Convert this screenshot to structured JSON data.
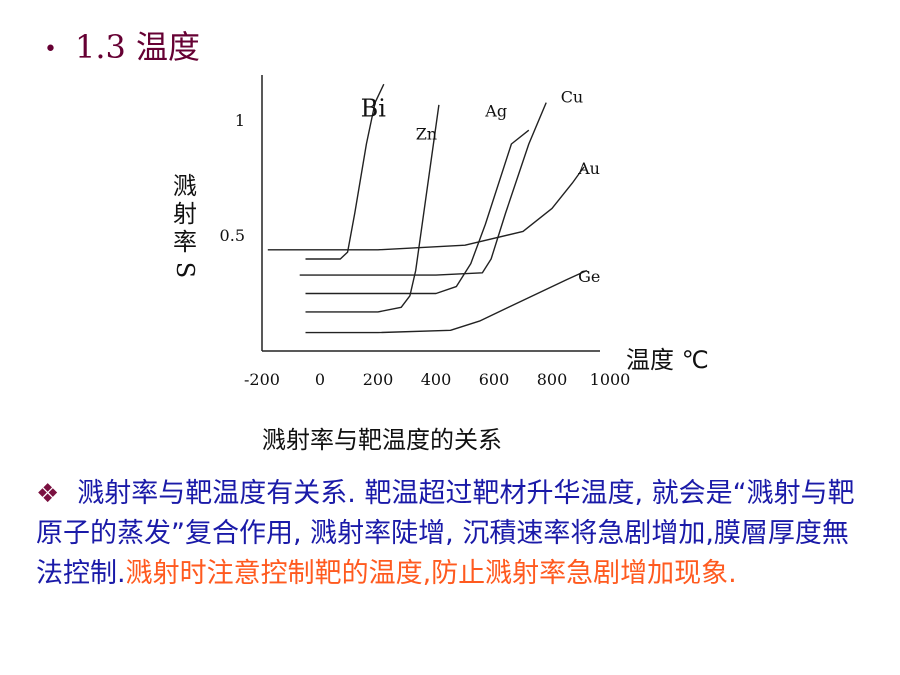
{
  "slide": {
    "title": "1.3 温度",
    "caption": "溅射率与靶温度的关系",
    "paragraph": {
      "marker": "❖",
      "blue_text": "溅射率与靶温度有关系. 靶温超过靶材升华温度, 就会是“溅射与靶原子的蒸发”复合作用, 溅射率陡增, 沉積速率将急剧增加,膜層厚度無法控制.",
      "orange_text": "溅射时注意控制靶的温度,防止溅射率急剧增加现象."
    }
  },
  "colors": {
    "title": "#660033",
    "blue_text": "#1a1aa8",
    "orange_text": "#ff5a1f",
    "curves": "#222222"
  },
  "chart_data": {
    "type": "line",
    "title": "",
    "xlabel": "温度 ℃",
    "ylabel_chars": [
      "溅",
      "射",
      "率"
    ],
    "ylabel_symbol": "S",
    "x_ticks": [
      "-200",
      "0",
      "200",
      "400",
      "600",
      "800",
      "1000"
    ],
    "x_tick_values": [
      -200,
      0,
      200,
      400,
      600,
      800,
      1000
    ],
    "y_ticks": [
      "0.5",
      "1"
    ],
    "y_tick_values": [
      0.5,
      1
    ],
    "xlim": [
      -200,
      1050
    ],
    "ylim": [
      0,
      1.08
    ],
    "grid": false,
    "series": [
      {
        "name": "Bi",
        "x": [
          -50,
          30,
          70,
          95,
          120,
          160,
          190,
          220
        ],
        "y": [
          0.4,
          0.4,
          0.4,
          0.43,
          0.6,
          0.9,
          1.08,
          1.16
        ]
      },
      {
        "name": "Zn",
        "x": [
          -50,
          100,
          200,
          280,
          310,
          330,
          380,
          410
        ],
        "y": [
          0.17,
          0.17,
          0.17,
          0.19,
          0.24,
          0.35,
          0.8,
          1.07
        ]
      },
      {
        "name": "Ag",
        "x": [
          -50,
          200,
          400,
          470,
          520,
          570,
          660,
          720
        ],
        "y": [
          0.25,
          0.25,
          0.25,
          0.28,
          0.38,
          0.55,
          0.9,
          0.96
        ]
      },
      {
        "name": "Cu",
        "x": [
          -70,
          200,
          400,
          560,
          590,
          640,
          720,
          780
        ],
        "y": [
          0.33,
          0.33,
          0.33,
          0.34,
          0.4,
          0.6,
          0.9,
          1.08
        ]
      },
      {
        "name": "Au",
        "x": [
          -180,
          200,
          500,
          700,
          800,
          870,
          910
        ],
        "y": [
          0.44,
          0.44,
          0.46,
          0.52,
          0.62,
          0.73,
          0.8
        ]
      },
      {
        "name": "Ge",
        "x": [
          -50,
          200,
          450,
          550,
          650,
          750,
          850,
          920
        ],
        "y": [
          0.08,
          0.08,
          0.09,
          0.13,
          0.19,
          0.25,
          0.31,
          0.35
        ]
      }
    ]
  }
}
